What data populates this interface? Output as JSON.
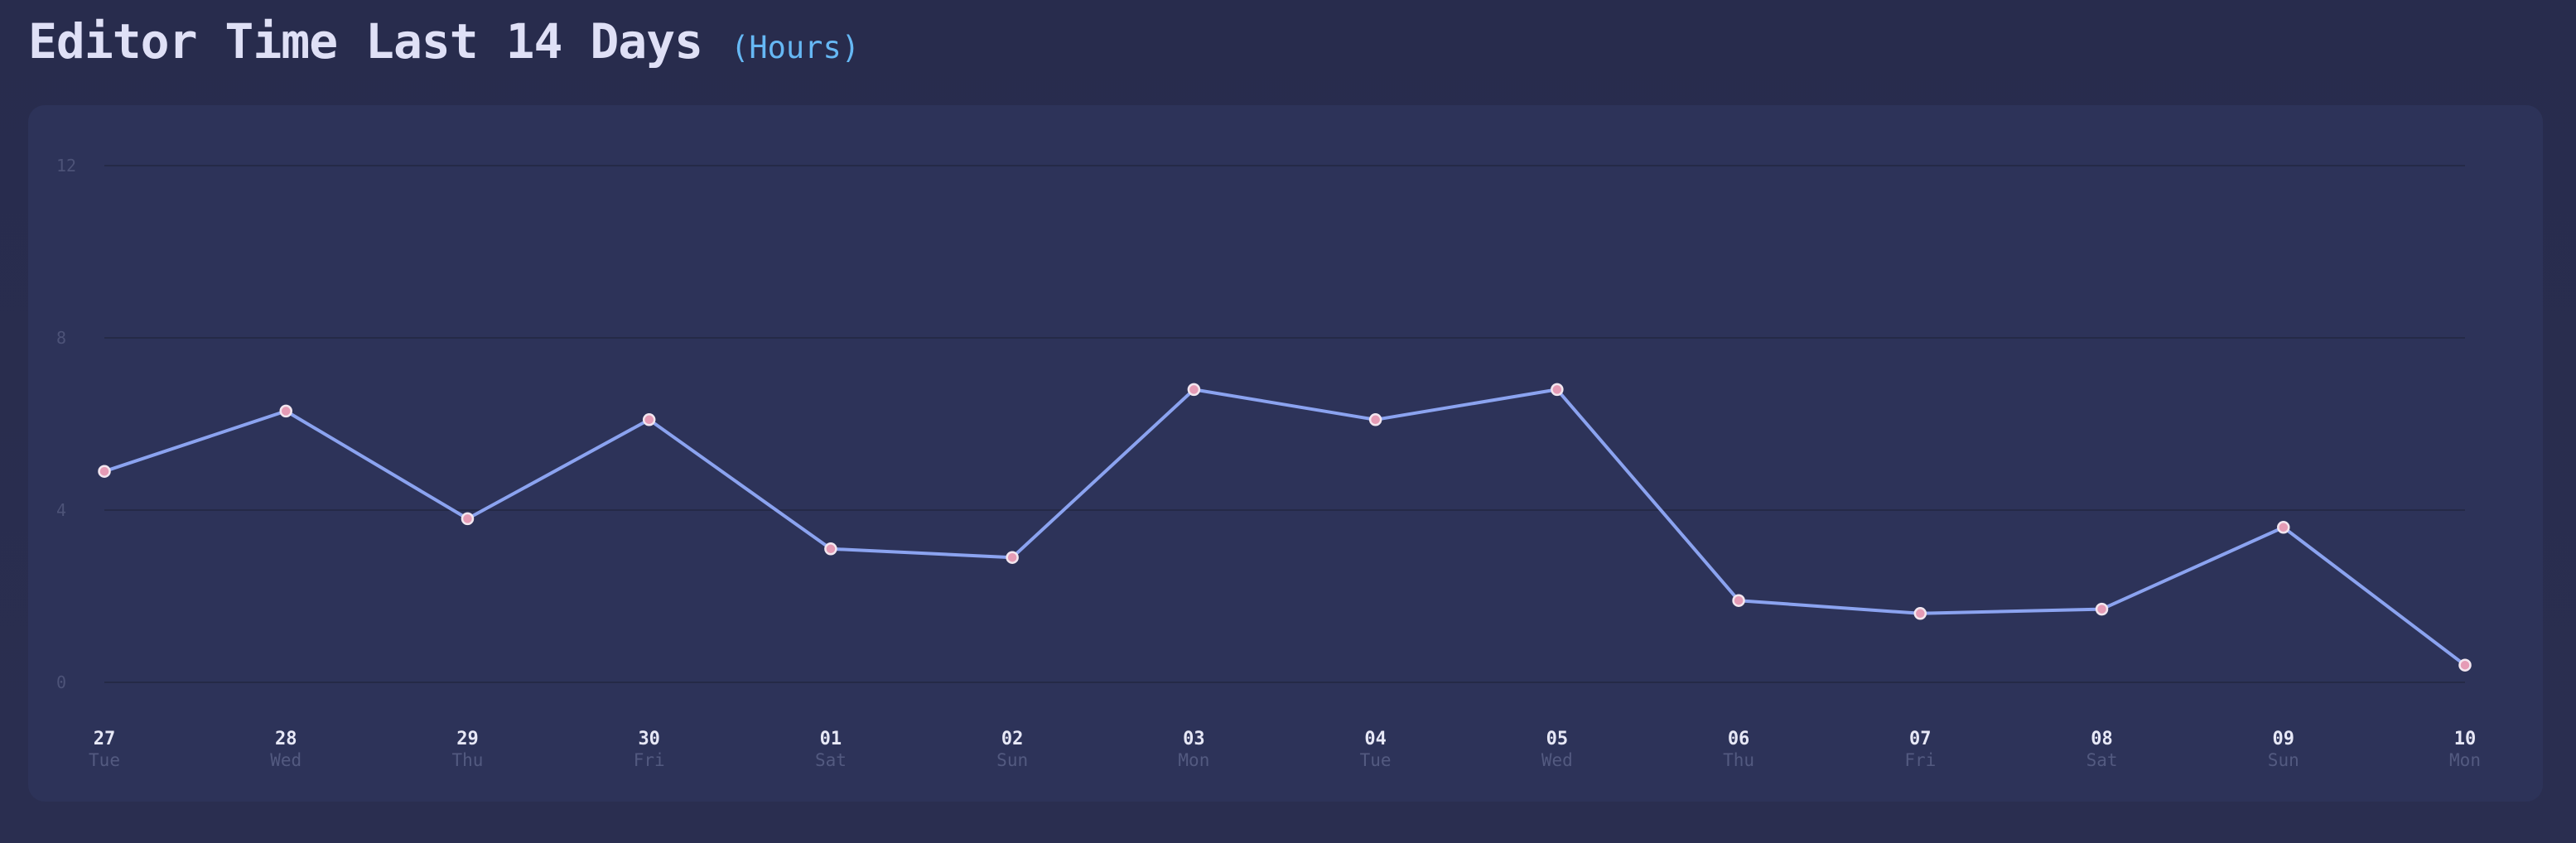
{
  "header": {
    "title": "Editor Time Last 14 Days",
    "unit": "(Hours)"
  },
  "colors": {
    "background": "#282c4d",
    "card": "#2d3359",
    "title": "#dfe0f6",
    "unit": "#66b8f4",
    "line": "#8ba3f0",
    "point_fill": "#e59bb5",
    "gridline": "#252a47"
  },
  "chart_data": {
    "type": "line",
    "title": "Editor Time Last 14 Days",
    "ylabel": "",
    "xlabel": "",
    "ylim": [
      0,
      12
    ],
    "yticks": [
      "0",
      "4",
      "8",
      "12"
    ],
    "grid": true,
    "legend": "none",
    "categories": [
      "27",
      "28",
      "29",
      "30",
      "01",
      "02",
      "03",
      "04",
      "05",
      "06",
      "07",
      "08",
      "09",
      "10"
    ],
    "days": [
      "Tue",
      "Wed",
      "Thu",
      "Fri",
      "Sat",
      "Sun",
      "Mon",
      "Tue",
      "Wed",
      "Thu",
      "Fri",
      "Sat",
      "Sun",
      "Mon"
    ],
    "series": [
      {
        "values": [
          4.9,
          6.3,
          3.8,
          6.1,
          3.1,
          2.9,
          6.8,
          6.1,
          6.8,
          1.9,
          1.6,
          1.7,
          3.6,
          0.4
        ]
      }
    ]
  }
}
